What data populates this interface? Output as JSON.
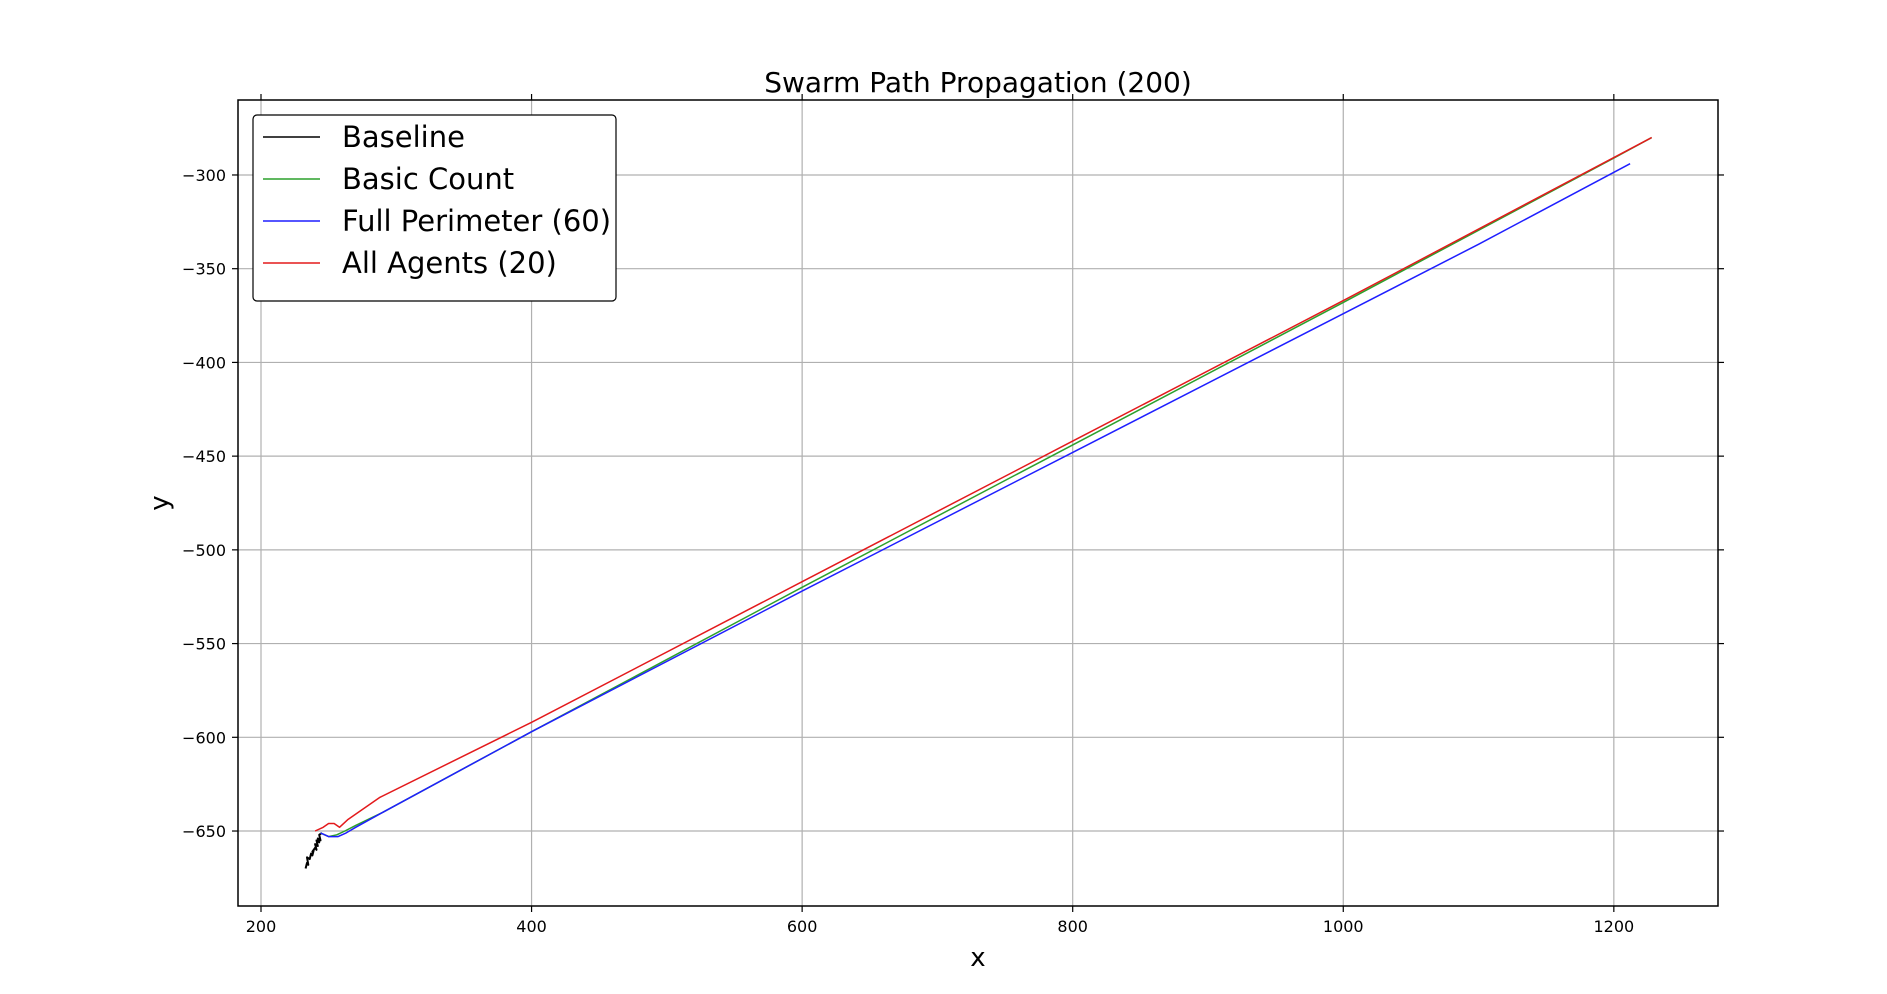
{
  "chart_data": {
    "type": "line",
    "title": "Swarm Path Propagation (200)",
    "xlabel": "x",
    "ylabel": "y",
    "xlim": [
      183,
      1277
    ],
    "ylim": [
      -690,
      -260
    ],
    "xticks": [
      200,
      400,
      600,
      800,
      1000,
      1200
    ],
    "yticks": [
      -300,
      -350,
      -400,
      -450,
      -500,
      -550,
      -600,
      -650
    ],
    "grid": true,
    "legend_position": "top-left",
    "series": [
      {
        "name": "Baseline",
        "color": "#000000",
        "x": [
          233,
          234,
          235,
          234,
          236,
          237,
          238,
          239,
          238,
          240,
          241,
          240,
          242,
          241,
          243,
          242,
          244,
          243,
          245
        ],
        "y": [
          -670,
          -667,
          -668,
          -664,
          -665,
          -662,
          -663,
          -660,
          -661,
          -659,
          -660,
          -657,
          -658,
          -655,
          -656,
          -654,
          -655,
          -652,
          -651
        ]
      },
      {
        "name": "Basic Count",
        "color": "#2ca02c",
        "x": [
          244,
          250,
          256,
          262,
          270,
          290,
          400,
          600,
          800,
          1000,
          1200,
          1228
        ],
        "y": [
          -651,
          -653,
          -652,
          -650,
          -647,
          -640,
          -597,
          -520,
          -444,
          -368,
          -291,
          -280
        ]
      },
      {
        "name": "Full Perimeter (60)",
        "color": "#1f1fff",
        "x": [
          244,
          250,
          257,
          263,
          270,
          290,
          400,
          600,
          800,
          1000,
          1100,
          1212
        ],
        "y": [
          -651,
          -653,
          -653,
          -651,
          -648,
          -640,
          -597,
          -522,
          -448,
          -374,
          -337,
          -294
        ]
      },
      {
        "name": "All Agents (20)",
        "color": "#e31a1c",
        "x": [
          240,
          246,
          250,
          254,
          258,
          264,
          272,
          288,
          400,
          600,
          800,
          1000,
          1228
        ],
        "y": [
          -650,
          -648,
          -646,
          -646,
          -648,
          -644,
          -640,
          -632,
          -592,
          -517,
          -442,
          -367,
          -280
        ]
      }
    ]
  }
}
